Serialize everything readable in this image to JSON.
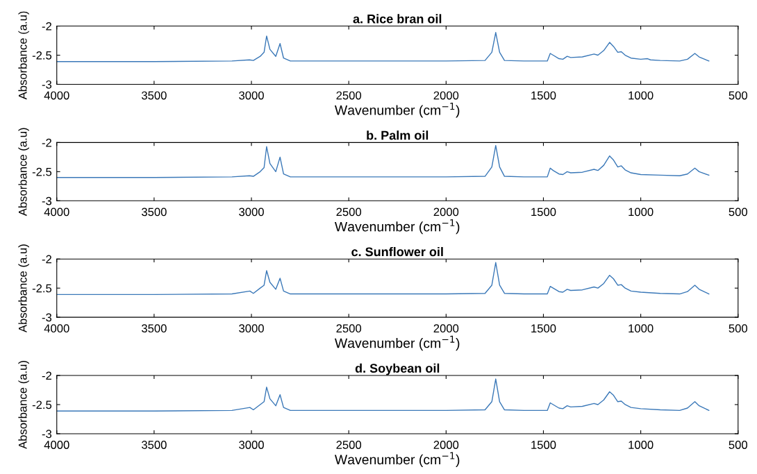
{
  "chart_data": [
    {
      "type": "line",
      "title": "a. Rice bran oil",
      "xlabel": "Wavenumber (cm$^{−1}$)",
      "ylabel": "Absorbance (a.u)",
      "xlim": [
        4000,
        500
      ],
      "ylim": [
        -3,
        -2
      ],
      "xticks": [
        4000,
        3500,
        3000,
        2500,
        2000,
        1500,
        1000,
        500
      ],
      "yticks": [
        -3,
        -2.5,
        -2
      ],
      "grid": false,
      "series": [
        {
          "color": "#3a78b8",
          "x": [
            4000,
            3500,
            3100,
            3010,
            2990,
            2955,
            2935,
            2922,
            2905,
            2875,
            2853,
            2835,
            2800,
            2500,
            2000,
            1800,
            1765,
            1745,
            1725,
            1700,
            1600,
            1480,
            1465,
            1450,
            1420,
            1400,
            1378,
            1360,
            1300,
            1240,
            1220,
            1190,
            1160,
            1140,
            1118,
            1100,
            1080,
            1050,
            1000,
            965,
            950,
            900,
            800,
            760,
            722,
            700,
            650
          ],
          "values": [
            -2.61,
            -2.61,
            -2.6,
            -2.58,
            -2.59,
            -2.52,
            -2.45,
            -2.17,
            -2.4,
            -2.52,
            -2.3,
            -2.55,
            -2.6,
            -2.6,
            -2.6,
            -2.59,
            -2.45,
            -2.11,
            -2.45,
            -2.59,
            -2.6,
            -2.6,
            -2.47,
            -2.5,
            -2.56,
            -2.57,
            -2.52,
            -2.54,
            -2.53,
            -2.48,
            -2.5,
            -2.42,
            -2.28,
            -2.35,
            -2.45,
            -2.44,
            -2.5,
            -2.55,
            -2.57,
            -2.56,
            -2.58,
            -2.59,
            -2.6,
            -2.57,
            -2.47,
            -2.53,
            -2.6
          ]
        }
      ]
    },
    {
      "type": "line",
      "title": "b. Palm oil",
      "xlabel": "Wavenumber (cm$^{−1}$)",
      "ylabel": "Absorbance (a.u)",
      "xlim": [
        4000,
        500
      ],
      "ylim": [
        -3,
        -2
      ],
      "xticks": [
        4000,
        3500,
        3000,
        2500,
        2000,
        1500,
        1000,
        500
      ],
      "yticks": [
        -3,
        -2.5,
        -2
      ],
      "grid": false,
      "series": [
        {
          "color": "#3a78b8",
          "x": [
            4000,
            3500,
            3100,
            3010,
            2990,
            2955,
            2935,
            2922,
            2905,
            2875,
            2853,
            2835,
            2800,
            2500,
            2000,
            1800,
            1765,
            1745,
            1725,
            1700,
            1600,
            1480,
            1465,
            1450,
            1420,
            1400,
            1378,
            1360,
            1300,
            1240,
            1220,
            1190,
            1160,
            1140,
            1118,
            1100,
            1080,
            1050,
            1000,
            900,
            800,
            760,
            722,
            700,
            650
          ],
          "values": [
            -2.6,
            -2.6,
            -2.59,
            -2.57,
            -2.58,
            -2.5,
            -2.43,
            -2.07,
            -2.36,
            -2.5,
            -2.25,
            -2.54,
            -2.59,
            -2.59,
            -2.59,
            -2.58,
            -2.42,
            -2.05,
            -2.42,
            -2.58,
            -2.59,
            -2.59,
            -2.44,
            -2.48,
            -2.54,
            -2.55,
            -2.5,
            -2.52,
            -2.51,
            -2.46,
            -2.48,
            -2.39,
            -2.23,
            -2.3,
            -2.42,
            -2.4,
            -2.47,
            -2.52,
            -2.55,
            -2.56,
            -2.57,
            -2.54,
            -2.44,
            -2.5,
            -2.56
          ]
        }
      ]
    },
    {
      "type": "line",
      "title": "c. Sunflower oil",
      "xlabel": "Wavenumber (cm$^{−1}$)",
      "ylabel": "Absorbance (a.u)",
      "xlim": [
        4000,
        500
      ],
      "ylim": [
        -3,
        -2
      ],
      "xticks": [
        4000,
        3500,
        3000,
        2500,
        2000,
        1500,
        1000,
        500
      ],
      "yticks": [
        -3,
        -2.5,
        -2
      ],
      "grid": false,
      "series": [
        {
          "color": "#3a78b8",
          "x": [
            4000,
            3500,
            3100,
            3008,
            2990,
            2955,
            2935,
            2922,
            2905,
            2875,
            2853,
            2835,
            2800,
            2500,
            2000,
            1800,
            1765,
            1745,
            1725,
            1700,
            1600,
            1480,
            1465,
            1450,
            1420,
            1400,
            1378,
            1360,
            1300,
            1240,
            1220,
            1190,
            1160,
            1140,
            1118,
            1100,
            1080,
            1050,
            1000,
            900,
            800,
            760,
            722,
            700,
            650
          ],
          "values": [
            -2.61,
            -2.61,
            -2.6,
            -2.55,
            -2.59,
            -2.5,
            -2.45,
            -2.2,
            -2.4,
            -2.52,
            -2.33,
            -2.55,
            -2.6,
            -2.6,
            -2.6,
            -2.59,
            -2.45,
            -2.06,
            -2.45,
            -2.59,
            -2.6,
            -2.6,
            -2.47,
            -2.5,
            -2.56,
            -2.57,
            -2.52,
            -2.54,
            -2.53,
            -2.48,
            -2.5,
            -2.42,
            -2.28,
            -2.34,
            -2.45,
            -2.44,
            -2.5,
            -2.55,
            -2.57,
            -2.59,
            -2.6,
            -2.56,
            -2.45,
            -2.52,
            -2.6
          ]
        }
      ]
    },
    {
      "type": "line",
      "title": "d. Soybean oil",
      "xlabel": "Wavenumber (cm$^{−1}$)",
      "ylabel": "Absorbance (a.u)",
      "xlim": [
        4000,
        500
      ],
      "ylim": [
        -3,
        -2
      ],
      "xticks": [
        4000,
        3500,
        3000,
        2500,
        2000,
        1500,
        1000,
        500
      ],
      "yticks": [
        -3,
        -2.5,
        -2
      ],
      "grid": false,
      "series": [
        {
          "color": "#3a78b8",
          "x": [
            4000,
            3500,
            3100,
            3008,
            2990,
            2955,
            2935,
            2922,
            2905,
            2875,
            2853,
            2835,
            2800,
            2500,
            2000,
            1800,
            1765,
            1745,
            1725,
            1700,
            1600,
            1480,
            1465,
            1450,
            1420,
            1400,
            1378,
            1360,
            1300,
            1240,
            1220,
            1190,
            1160,
            1140,
            1118,
            1100,
            1080,
            1050,
            1000,
            900,
            800,
            760,
            722,
            700,
            650
          ],
          "values": [
            -2.61,
            -2.61,
            -2.6,
            -2.55,
            -2.59,
            -2.5,
            -2.45,
            -2.2,
            -2.4,
            -2.52,
            -2.33,
            -2.55,
            -2.6,
            -2.6,
            -2.6,
            -2.59,
            -2.45,
            -2.06,
            -2.45,
            -2.59,
            -2.6,
            -2.6,
            -2.47,
            -2.5,
            -2.56,
            -2.57,
            -2.52,
            -2.54,
            -2.53,
            -2.48,
            -2.5,
            -2.42,
            -2.28,
            -2.34,
            -2.45,
            -2.44,
            -2.5,
            -2.55,
            -2.57,
            -2.59,
            -2.6,
            -2.56,
            -2.45,
            -2.52,
            -2.6
          ]
        }
      ]
    }
  ]
}
